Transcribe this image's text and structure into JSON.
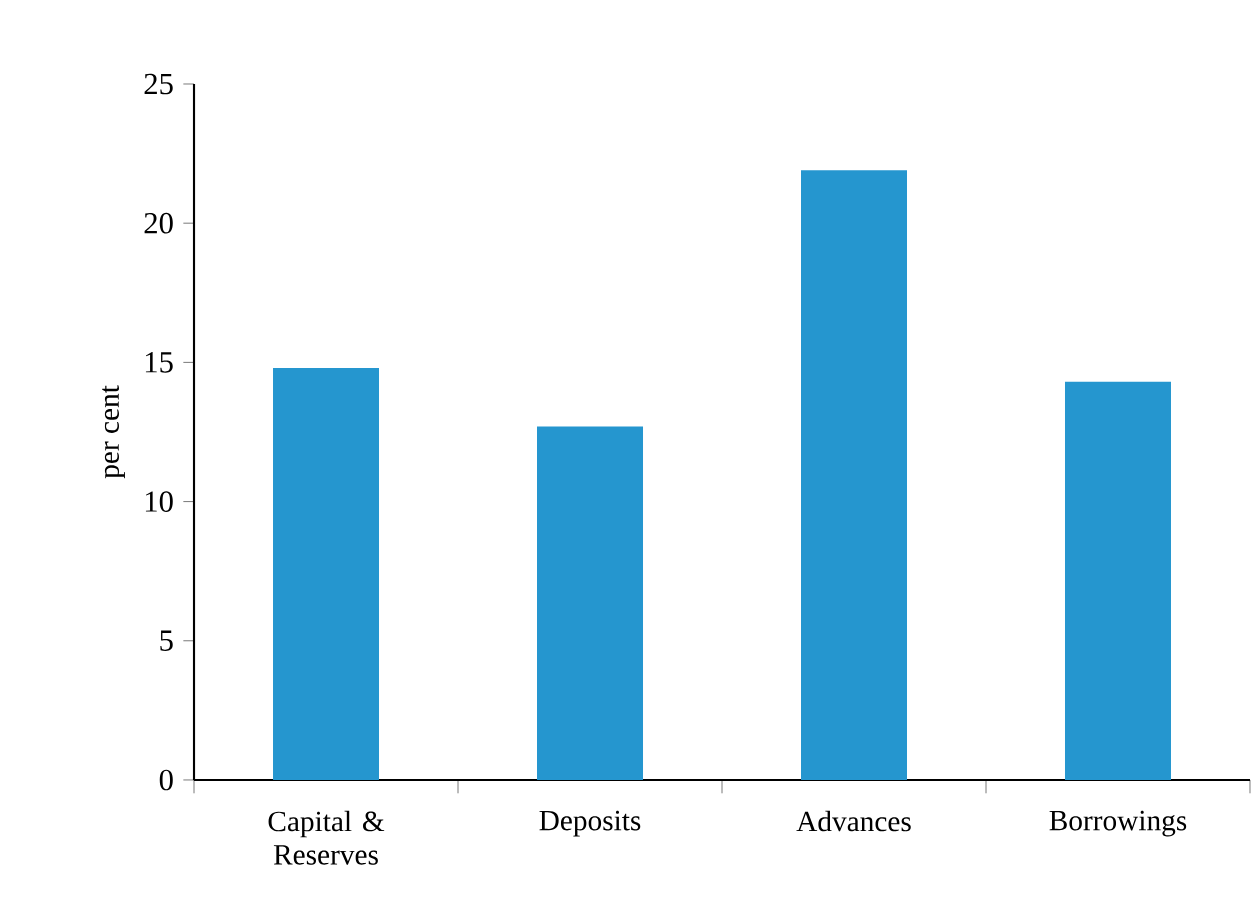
{
  "chart_data": {
    "type": "bar",
    "ylabel": "per cent",
    "categories": [
      "Capital & Reserves",
      "Deposits",
      "Advances",
      "Borrowings"
    ],
    "values": [
      14.8,
      12.7,
      21.9,
      14.3
    ],
    "color": "#2596cf",
    "ylim": [
      0,
      25
    ],
    "yticks": [
      0,
      5,
      10,
      15,
      20,
      25
    ],
    "grid": false
  }
}
